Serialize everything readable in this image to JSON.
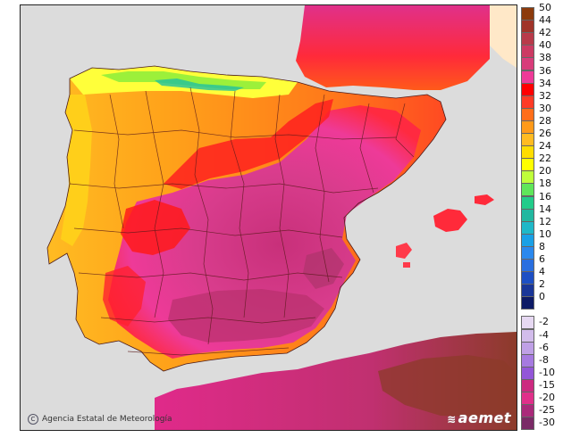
{
  "credit": {
    "text": "Agencia Estatal de Meteorología",
    "icon": "copyright-icon"
  },
  "logo": {
    "text": "aemet"
  },
  "legend": {
    "positive": [
      {
        "label": "50",
        "color": "#8c3b0c"
      },
      {
        "label": "44",
        "color": "#a0342a"
      },
      {
        "label": "42",
        "color": "#b83a4a"
      },
      {
        "label": "40",
        "color": "#cc3a63"
      },
      {
        "label": "38",
        "color": "#d83c7a"
      },
      {
        "label": "36",
        "color": "#ee3a98"
      },
      {
        "label": "34",
        "color": "#ff0000"
      },
      {
        "label": "32",
        "color": "#ff3b26"
      },
      {
        "label": "30",
        "color": "#ff6e1a"
      },
      {
        "label": "28",
        "color": "#ff9a1a"
      },
      {
        "label": "26",
        "color": "#ffbb22"
      },
      {
        "label": "24",
        "color": "#ffdd00"
      },
      {
        "label": "22",
        "color": "#ffff00"
      },
      {
        "label": "20",
        "color": "#bfff3a"
      },
      {
        "label": "18",
        "color": "#5fe65a"
      },
      {
        "label": "16",
        "color": "#22cc8a"
      },
      {
        "label": "14",
        "color": "#22b8a0"
      },
      {
        "label": "12",
        "color": "#1fb8c8"
      },
      {
        "label": "10",
        "color": "#1aa0e6"
      },
      {
        "label": "8",
        "color": "#2a88ee"
      },
      {
        "label": "6",
        "color": "#2a6fe0"
      },
      {
        "label": "4",
        "color": "#1d4fc4"
      },
      {
        "label": "2",
        "color": "#1a3698"
      },
      {
        "label": "0",
        "color": "#0d1a66"
      }
    ],
    "negative": [
      {
        "label": "-2",
        "color": "#e6d8f2"
      },
      {
        "label": "-4",
        "color": "#d2bceb"
      },
      {
        "label": "-6",
        "color": "#bfa0e6"
      },
      {
        "label": "-8",
        "color": "#a67ae0"
      },
      {
        "label": "-10",
        "color": "#9356d8"
      },
      {
        "label": "-15",
        "color": "#cc2a80"
      },
      {
        "label": "-20",
        "color": "#e0308a"
      },
      {
        "label": "-25",
        "color": "#aa2a7a"
      },
      {
        "label": "-30",
        "color": "#7a2a66"
      }
    ]
  }
}
